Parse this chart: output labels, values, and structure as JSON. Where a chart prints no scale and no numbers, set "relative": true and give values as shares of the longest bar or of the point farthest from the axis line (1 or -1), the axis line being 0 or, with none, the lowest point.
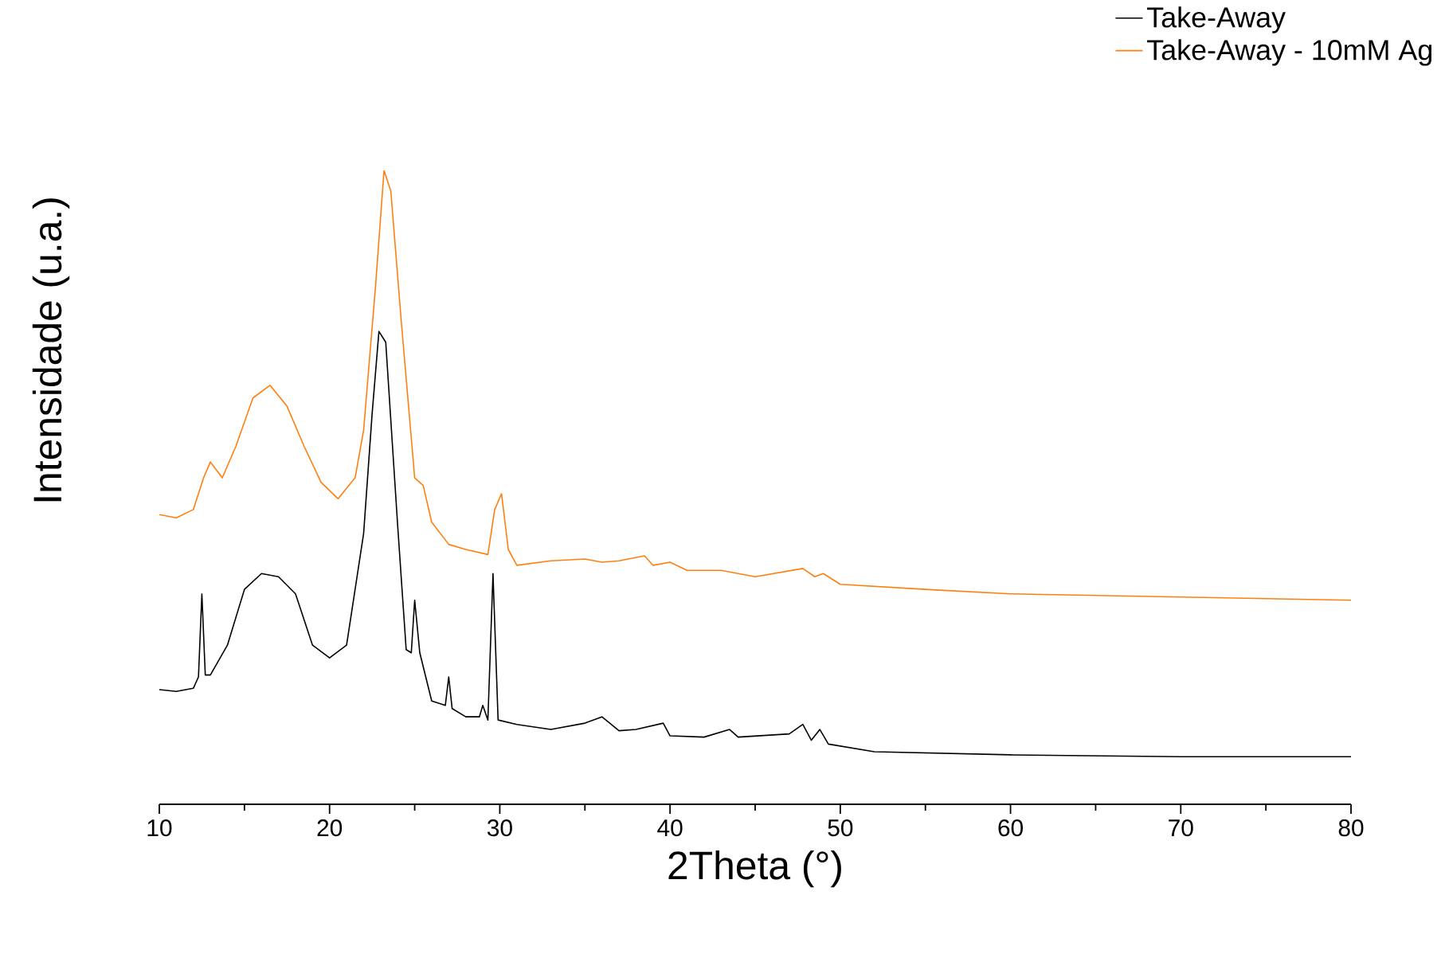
{
  "chart_data": {
    "type": "line",
    "xlabel": "2Theta (°)",
    "ylabel": "Intensidade (u.a.)",
    "relative": true,
    "legend": "top right",
    "xlim": [
      10,
      80
    ],
    "xticks": [
      10,
      20,
      30,
      40,
      50,
      60,
      70,
      80
    ],
    "series": [
      {
        "name": "Take-Away",
        "color": "#000000",
        "x": [
          10,
          11,
          12,
          12.3,
          12.5,
          12.7,
          13,
          14,
          15,
          16,
          17,
          18,
          19,
          20,
          21,
          22,
          22.5,
          22.9,
          23.3,
          24,
          24.5,
          24.8,
          25,
          25.3,
          26,
          26.8,
          27,
          27.2,
          28,
          28.8,
          29,
          29.3,
          29.6,
          29.9,
          31,
          33,
          35,
          36,
          37,
          38,
          39.6,
          40,
          42,
          43.5,
          44,
          47,
          47.8,
          48.3,
          48.8,
          49.3,
          52,
          60,
          70,
          80
        ],
        "values": [
          0.181,
          0.178,
          0.183,
          0.201,
          0.332,
          0.204,
          0.204,
          0.251,
          0.339,
          0.364,
          0.359,
          0.332,
          0.251,
          0.231,
          0.251,
          0.427,
          0.616,
          0.746,
          0.729,
          0.44,
          0.244,
          0.239,
          0.322,
          0.239,
          0.163,
          0.156,
          0.201,
          0.151,
          0.138,
          0.138,
          0.156,
          0.133,
          0.364,
          0.133,
          0.126,
          0.118,
          0.128,
          0.138,
          0.116,
          0.118,
          0.128,
          0.108,
          0.106,
          0.118,
          0.106,
          0.111,
          0.126,
          0.101,
          0.118,
          0.095,
          0.083,
          0.078,
          0.075,
          0.075
        ]
      },
      {
        "name": "Take-Away - 10mM Ag",
        "color": "#ff7f0e",
        "x": [
          10,
          11,
          12,
          12.6,
          13,
          13.7,
          14.5,
          15.5,
          16.5,
          17.5,
          18.5,
          19.5,
          20.5,
          21.5,
          22,
          22.7,
          23.2,
          23.6,
          24.2,
          25,
          25.5,
          26,
          27,
          28,
          29.3,
          29.7,
          30.1,
          30.5,
          31,
          33,
          35,
          36,
          37,
          38.5,
          39,
          40,
          41,
          43,
          45,
          47.8,
          48.5,
          49,
          50,
          55,
          60,
          70,
          80
        ],
        "values": [
          0.457,
          0.452,
          0.465,
          0.515,
          0.54,
          0.515,
          0.565,
          0.641,
          0.661,
          0.628,
          0.565,
          0.508,
          0.482,
          0.515,
          0.59,
          0.817,
          1,
          0.967,
          0.766,
          0.515,
          0.503,
          0.445,
          0.41,
          0.402,
          0.394,
          0.465,
          0.49,
          0.402,
          0.377,
          0.384,
          0.387,
          0.382,
          0.384,
          0.392,
          0.377,
          0.382,
          0.369,
          0.369,
          0.359,
          0.372,
          0.359,
          0.364,
          0.347,
          0.339,
          0.332,
          0.327,
          0.322
        ]
      }
    ]
  }
}
